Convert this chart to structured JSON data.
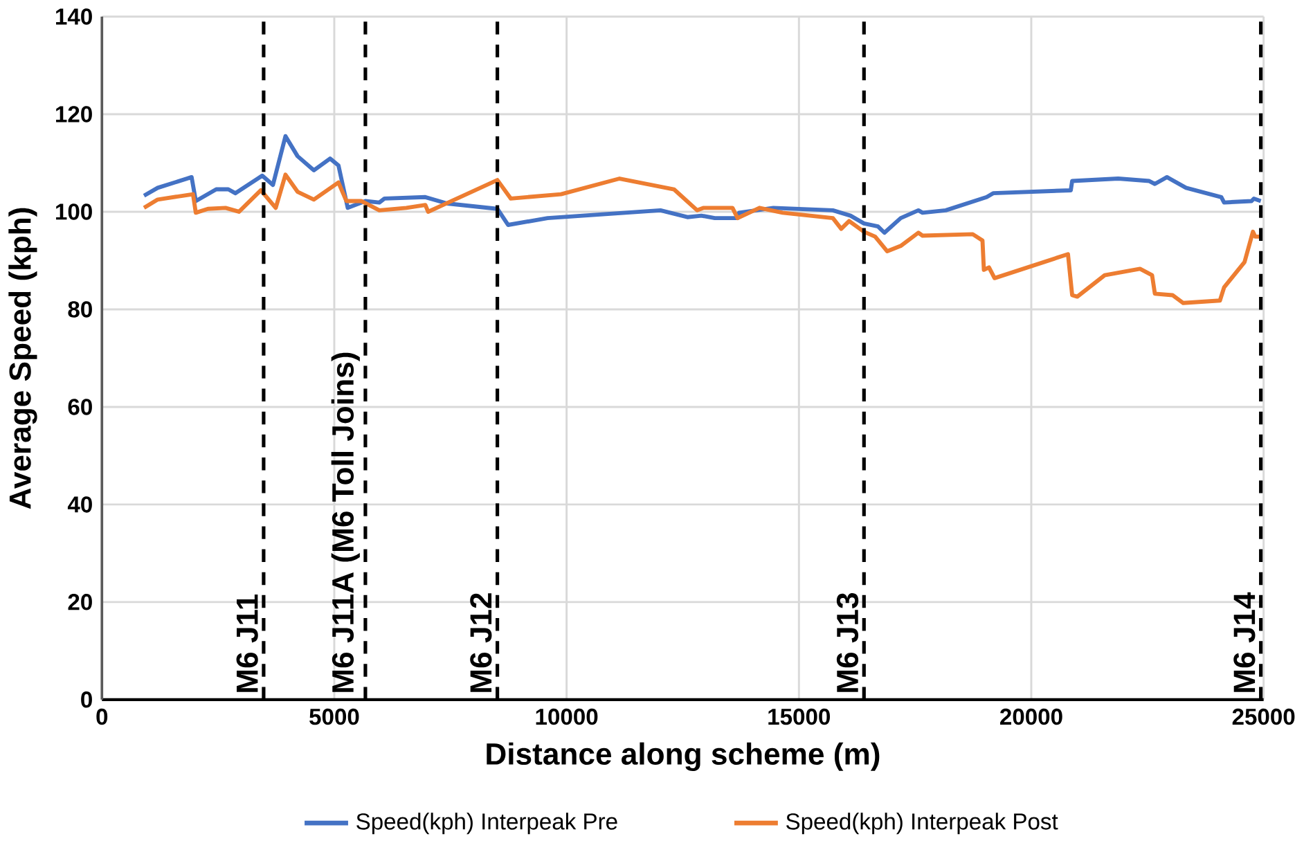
{
  "chart_data": {
    "type": "line",
    "xlabel": "Distance along scheme (m)",
    "ylabel": "Average Speed (kph)",
    "xlim": [
      0,
      25000
    ],
    "xticks": [
      0,
      5000,
      10000,
      15000,
      20000,
      25000
    ],
    "ylim": [
      0,
      140
    ],
    "yticks": [
      0,
      20,
      40,
      60,
      80,
      100,
      120,
      140
    ],
    "grid": true,
    "legend": "bottom",
    "marker": "none",
    "line_style": "solid",
    "series": [
      {
        "name": "Speed(kph) Interpeak Pre",
        "color": "#4472c4",
        "x": [
          906,
          1200,
          1930,
          2020,
          2460,
          2720,
          2870,
          3450,
          3680,
          3950,
          4210,
          4560,
          4910,
          5090,
          5290,
          5670,
          5970,
          6080,
          6960,
          7430,
          8510,
          8740,
          9590,
          12020,
          12600,
          12900,
          13190,
          13680,
          13710,
          14450,
          15730,
          16110,
          16400,
          16700,
          16840,
          17190,
          17570,
          17660,
          18160,
          19040,
          19180,
          20850,
          20880,
          21870,
          22540,
          22660,
          22920,
          23330,
          24090,
          24150,
          24740,
          24790,
          24940
        ],
        "values": [
          103.3,
          104.9,
          107.1,
          102.2,
          104.6,
          104.6,
          103.8,
          107.4,
          105.5,
          115.5,
          111.4,
          108.5,
          110.9,
          109.5,
          100.8,
          102.2,
          101.9,
          102.7,
          103,
          101.7,
          100.6,
          97.3,
          98.7,
          100.3,
          98.9,
          99.2,
          98.7,
          98.7,
          99.8,
          100.8,
          100.3,
          99.2,
          97.6,
          97,
          95.7,
          98.7,
          100.3,
          99.8,
          100.3,
          103,
          103.8,
          104.4,
          106.3,
          106.8,
          106.3,
          105.7,
          107.1,
          104.9,
          103,
          101.9,
          102.2,
          102.7,
          102.2
        ]
      },
      {
        "name": "Speed(kph) Interpeak Post",
        "color": "#ed7d31",
        "x": [
          906,
          1200,
          1960,
          2020,
          2280,
          2660,
          2950,
          3420,
          3740,
          3950,
          4210,
          4560,
          5090,
          5260,
          5580,
          5970,
          6550,
          6960,
          7020,
          7340,
          8510,
          8800,
          9880,
          11140,
          12310,
          12810,
          12950,
          13570,
          13680,
          14150,
          14650,
          15730,
          15910,
          16080,
          16400,
          16640,
          16900,
          17190,
          17570,
          17660,
          18740,
          18950,
          18980,
          19090,
          19210,
          20790,
          20880,
          20990,
          21580,
          22340,
          22600,
          22660,
          23040,
          23270,
          24060,
          24150,
          24590,
          24770,
          24820,
          24940
        ],
        "values": [
          100.8,
          102.5,
          103.6,
          99.8,
          100.6,
          100.8,
          100,
          104.4,
          100.8,
          107.6,
          104.1,
          102.5,
          106,
          102.2,
          102.2,
          100.3,
          100.8,
          101.4,
          100,
          101.4,
          106.5,
          102.7,
          103.6,
          106.8,
          104.6,
          100.3,
          100.8,
          100.8,
          98.7,
          100.8,
          99.8,
          98.7,
          96.5,
          98.1,
          95.9,
          94.9,
          91.9,
          93,
          95.7,
          95.1,
          95.4,
          94.1,
          88.1,
          88.6,
          86.4,
          91.3,
          82.9,
          82.6,
          87,
          88.3,
          87,
          83.2,
          82.9,
          81.3,
          81.8,
          84.5,
          89.7,
          95.9,
          94.9,
          94.9
        ]
      }
    ],
    "ref_lines": [
      {
        "axis": "x",
        "value": 3480,
        "label": "M6 J11",
        "color": "#000000",
        "line_style": "dashed"
      },
      {
        "axis": "x",
        "value": 5670,
        "label": "M6 J11A (M6 Toll Joins)",
        "color": "#000000",
        "line_style": "dashed"
      },
      {
        "axis": "x",
        "value": 8510,
        "label": "M6 J12",
        "color": "#000000",
        "line_style": "dashed"
      },
      {
        "axis": "x",
        "value": 16400,
        "label": "M6 J13",
        "color": "#000000",
        "line_style": "dashed"
      },
      {
        "axis": "x",
        "value": 24940,
        "label": "M6 J14",
        "color": "#000000",
        "line_style": "dashed"
      }
    ]
  }
}
